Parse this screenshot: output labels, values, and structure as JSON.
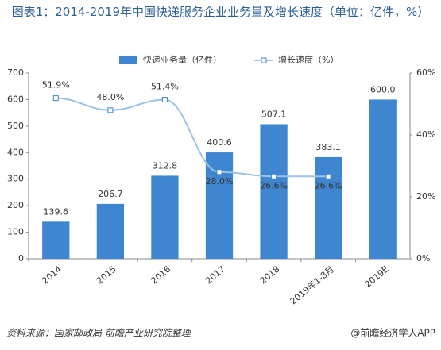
{
  "chart_data": {
    "type": "bar",
    "title": "图表1：2014-2019年中国快递服务企业业务量及增长速度（单位：亿件，%）",
    "categories": [
      "2014",
      "2015",
      "2016",
      "2017",
      "2018",
      "2019年1-8月",
      "2019E"
    ],
    "series": [
      {
        "name": "快递业务量（亿件）",
        "type": "bar",
        "color": "#3f86d0",
        "values": [
          139.6,
          206.7,
          312.8,
          400.6,
          507.1,
          383.1,
          600.0
        ],
        "value_labels": [
          "139.6",
          "206.7",
          "312.8",
          "400.6",
          "507.1",
          "383.1",
          "600.0"
        ]
      },
      {
        "name": "增长速度（%）",
        "type": "line",
        "axis": "y2",
        "color": "#9cc2e5",
        "values": [
          51.9,
          48.0,
          51.4,
          28.0,
          26.6,
          26.6,
          null
        ],
        "value_labels": [
          "51.9%",
          "48.0%",
          "51.4%",
          "28.0%",
          "26.6%",
          "26.6%",
          null
        ]
      }
    ],
    "ylim": [
      0,
      700
    ],
    "yticks": [
      0,
      100,
      200,
      300,
      400,
      500,
      600,
      700
    ],
    "y2lim": [
      0,
      60
    ],
    "y2ticks": [
      {
        "value": 0,
        "label": "0%"
      },
      {
        "value": 20,
        "label": "20%"
      },
      {
        "value": 40,
        "label": "40%"
      },
      {
        "value": 60,
        "label": "60%"
      }
    ],
    "source": "资料来源：国家邮政局 前瞻产业研究院整理",
    "brand": "@前瞻经济学人APP"
  }
}
